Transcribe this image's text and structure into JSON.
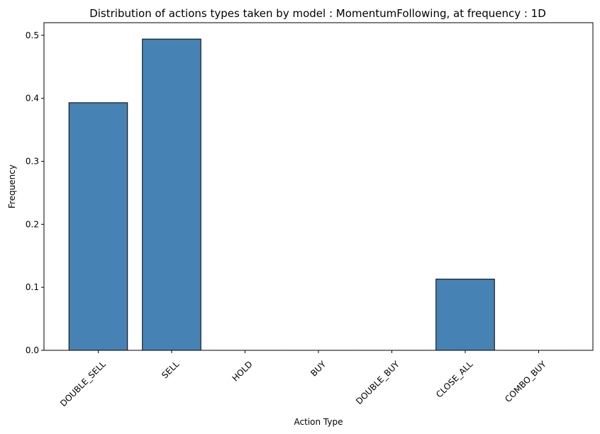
{
  "chart_data": {
    "type": "bar",
    "title": "Distribution of actions types taken by model : MomentumFollowing, at frequency : 1D",
    "xlabel": "Action Type",
    "ylabel": "Frequency",
    "categories": [
      "DOUBLE_SELL",
      "SELL",
      "HOLD",
      "BUY",
      "DOUBLE_BUY",
      "CLOSE_ALL",
      "COMBO_BUY"
    ],
    "values": [
      0.393,
      0.494,
      0.0,
      0.0,
      0.0,
      0.113,
      0.0
    ],
    "ylim": [
      0,
      0.52
    ],
    "yticks": [
      "0.0",
      "0.1",
      "0.2",
      "0.3",
      "0.4",
      "0.5"
    ],
    "bar_color": "#4682b4",
    "edge_color": "#000000",
    "grid": false,
    "legend": false
  }
}
